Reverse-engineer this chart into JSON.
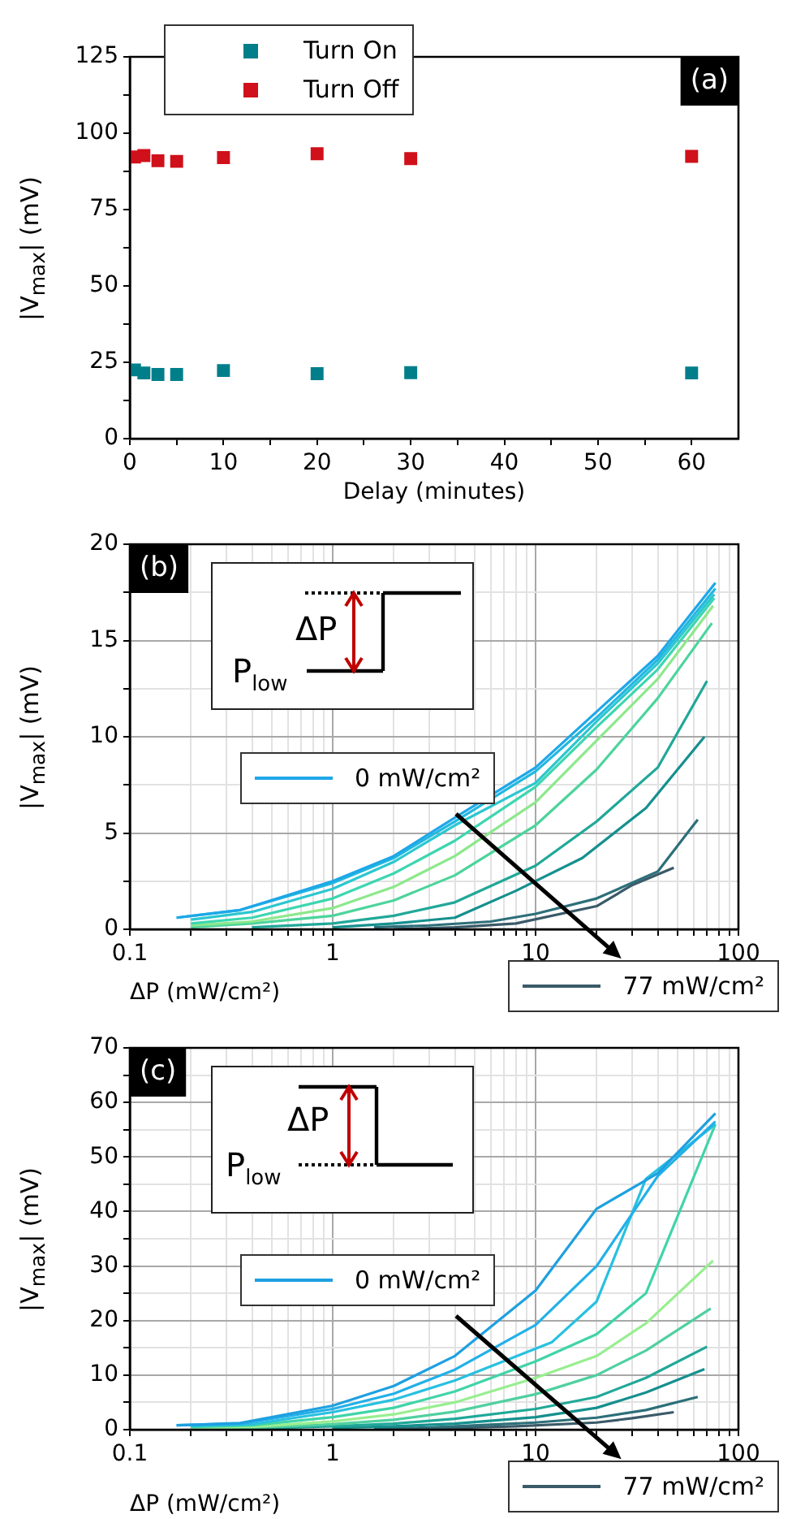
{
  "chart_data": [
    {
      "type": "scatter",
      "title": "(a)",
      "xlabel": "Delay (minutes)",
      "ylabel": "|V$_{max}$| (mV)",
      "xlim": [
        0,
        65
      ],
      "xticks": [
        0,
        {
          "value": 5,
          "label": null
        },
        10,
        {
          "value": 15,
          "label": null
        },
        20,
        {
          "value": 25,
          "label": null
        },
        30,
        {
          "value": 35,
          "label": null
        },
        40,
        {
          "value": 45,
          "label": null
        },
        50,
        {
          "value": 55,
          "label": null
        },
        60
      ],
      "ylim": [
        0,
        125
      ],
      "yticks": [
        0,
        {
          "value": 12.5,
          "label": null
        },
        25,
        {
          "value": 37.5,
          "label": null
        },
        50,
        {
          "value": 62.5,
          "label": null
        },
        75,
        {
          "value": 87.5,
          "label": null
        },
        100,
        {
          "value": 112.5,
          "label": null
        },
        125
      ],
      "grid": false,
      "legend": "top left",
      "marker": "square",
      "x": [
        0.5,
        1.5,
        3,
        5,
        10,
        20,
        30,
        60
      ],
      "series": [
        {
          "name": "Turn On",
          "color": "#007f8a",
          "values": [
            22.5,
            21.5,
            21,
            21,
            22.3,
            21.3,
            21.6,
            21.5
          ]
        },
        {
          "name": "Turn Off",
          "color": "#d0101a",
          "values": [
            92.2,
            92.7,
            91,
            90.8,
            92,
            93.3,
            91.7,
            92.4
          ]
        }
      ]
    },
    {
      "type": "line",
      "title": "(b)",
      "xlabel": "ΔP (mW/cm²)",
      "ylabel": "|V$_{max}$| (mV)",
      "log": "x",
      "xlim": [
        0.1,
        100
      ],
      "xticks": [
        0.1,
        {
          "value": 0.2,
          "label": null
        },
        {
          "value": 0.3,
          "label": null
        },
        {
          "value": 0.4,
          "label": null
        },
        {
          "value": 0.5,
          "label": null
        },
        {
          "value": 0.6,
          "label": null
        },
        {
          "value": 0.7,
          "label": null
        },
        {
          "value": 0.8,
          "label": null
        },
        {
          "value": 0.9,
          "label": null
        },
        1,
        {
          "value": 2,
          "label": null
        },
        {
          "value": 3,
          "label": null
        },
        {
          "value": 4,
          "label": null
        },
        {
          "value": 5,
          "label": null
        },
        {
          "value": 6,
          "label": null
        },
        {
          "value": 7,
          "label": null
        },
        {
          "value": 8,
          "label": null
        },
        {
          "value": 9,
          "label": null
        },
        10,
        {
          "value": 20,
          "label": null
        },
        {
          "value": 30,
          "label": null
        },
        {
          "value": 40,
          "label": null
        },
        {
          "value": 50,
          "label": null
        },
        {
          "value": 60,
          "label": null
        },
        {
          "value": 70,
          "label": null
        },
        {
          "value": 80,
          "label": null
        },
        {
          "value": 90,
          "label": null
        },
        100
      ],
      "ylim": [
        0,
        20
      ],
      "yticks": [
        0,
        {
          "value": 2.5,
          "label": null
        },
        5,
        {
          "value": 7.5,
          "label": null
        },
        10,
        {
          "value": 12.5,
          "label": null
        },
        15,
        {
          "value": 17.5,
          "label": null
        },
        20
      ],
      "grid": true,
      "legend": "bottom right",
      "marker": "none",
      "line_style": "solid",
      "annotations": [
        "ΔP",
        "P$_{low}$"
      ],
      "series": [
        {
          "name": "0 mW/cm²",
          "color": "#1ea7e8",
          "x": [
            0.17,
            0.35,
            1,
            2,
            4,
            10,
            20,
            40,
            77
          ],
          "values": [
            0.6,
            1.0,
            2.5,
            3.8,
            5.8,
            8.4,
            11.3,
            14.2,
            18.0
          ]
        },
        {
          "color": "#22b8e0",
          "x": [
            0.17,
            0.35,
            1,
            2,
            4,
            10,
            20,
            40,
            77
          ],
          "values": [
            0.6,
            1.0,
            2.4,
            3.7,
            5.6,
            8.2,
            11.0,
            14.0,
            17.7
          ]
        },
        {
          "color": "#2cc7d0",
          "x": [
            0.2,
            0.4,
            1,
            2,
            4,
            10,
            20,
            40,
            76
          ],
          "values": [
            0.5,
            0.9,
            2.1,
            3.5,
            5.4,
            7.6,
            10.8,
            13.8,
            17.4
          ]
        },
        {
          "color": "#3dd6b0",
          "x": [
            0.2,
            0.4,
            1,
            2,
            4,
            10,
            20,
            40,
            76
          ],
          "values": [
            0.3,
            0.6,
            1.6,
            2.9,
            4.6,
            7.4,
            10.5,
            13.5,
            17.2
          ]
        },
        {
          "color": "#8ce88c",
          "x": [
            0.2,
            0.4,
            1,
            2,
            4,
            10,
            20,
            40,
            75
          ],
          "values": [
            0.2,
            0.4,
            1.1,
            2.2,
            3.8,
            6.6,
            9.8,
            13.0,
            16.8
          ]
        },
        {
          "color": "#4cd49c",
          "x": [
            0.2,
            0.4,
            1,
            2,
            4,
            10,
            20,
            40,
            74
          ],
          "values": [
            0.1,
            0.3,
            0.7,
            1.5,
            2.8,
            5.4,
            8.3,
            12.0,
            15.9
          ]
        },
        {
          "color": "#20a898",
          "x": [
            0.4,
            1,
            2,
            4,
            10,
            20,
            40,
            70
          ],
          "values": [
            0.1,
            0.3,
            0.7,
            1.4,
            3.3,
            5.6,
            8.4,
            12.9
          ]
        },
        {
          "color": "#15908e",
          "x": [
            1,
            2,
            4,
            8,
            17,
            35,
            68
          ],
          "values": [
            0.1,
            0.3,
            0.6,
            2.0,
            3.7,
            6.3,
            10.0
          ]
        },
        {
          "color": "#2d6f7a",
          "x": [
            1.6,
            3,
            6,
            10,
            20,
            40,
            63
          ],
          "values": [
            0.1,
            0.2,
            0.4,
            0.8,
            1.6,
            3.0,
            5.7
          ]
        },
        {
          "name": "77 mW/cm²",
          "color": "#3a5a68",
          "x": [
            2,
            4,
            8,
            20,
            30,
            48
          ],
          "values": [
            0,
            0.1,
            0.3,
            1.2,
            2.3,
            3.2
          ]
        }
      ]
    },
    {
      "type": "line",
      "title": "(c)",
      "xlabel": "ΔP (mW/cm²)",
      "ylabel": "|V$_{max}$| (mV)",
      "log": "x",
      "xlim": [
        0.1,
        100
      ],
      "xticks": [
        0.1,
        {
          "value": 0.2,
          "label": null
        },
        {
          "value": 0.3,
          "label": null
        },
        {
          "value": 0.4,
          "label": null
        },
        {
          "value": 0.5,
          "label": null
        },
        {
          "value": 0.6,
          "label": null
        },
        {
          "value": 0.7,
          "label": null
        },
        {
          "value": 0.8,
          "label": null
        },
        {
          "value": 0.9,
          "label": null
        },
        1,
        {
          "value": 2,
          "label": null
        },
        {
          "value": 3,
          "label": null
        },
        {
          "value": 4,
          "label": null
        },
        {
          "value": 5,
          "label": null
        },
        {
          "value": 6,
          "label": null
        },
        {
          "value": 7,
          "label": null
        },
        {
          "value": 8,
          "label": null
        },
        {
          "value": 9,
          "label": null
        },
        10,
        {
          "value": 20,
          "label": null
        },
        {
          "value": 30,
          "label": null
        },
        {
          "value": 40,
          "label": null
        },
        {
          "value": 50,
          "label": null
        },
        {
          "value": 60,
          "label": null
        },
        {
          "value": 70,
          "label": null
        },
        {
          "value": 80,
          "label": null
        },
        {
          "value": 90,
          "label": null
        },
        100
      ],
      "ylim": [
        0,
        70
      ],
      "yticks": [
        0,
        {
          "value": 5,
          "label": null
        },
        10,
        {
          "value": 15,
          "label": null
        },
        20,
        {
          "value": 25,
          "label": null
        },
        30,
        {
          "value": 35,
          "label": null
        },
        40,
        {
          "value": 45,
          "label": null
        },
        50,
        {
          "value": 55,
          "label": null
        },
        60,
        {
          "value": 65,
          "label": null
        },
        70
      ],
      "grid": true,
      "legend": "bottom right",
      "marker": "none",
      "line_style": "solid",
      "annotations": [
        "ΔP",
        "P$_{low}$"
      ],
      "series": [
        {
          "name": "0 mW/cm²",
          "color": "#1ea0e0",
          "x": [
            0.17,
            0.35,
            1,
            2,
            4,
            10,
            20,
            40,
            77
          ],
          "values": [
            0.8,
            1.2,
            4.4,
            8,
            13.5,
            25.5,
            40.5,
            47,
            58
          ]
        },
        {
          "color": "#22b0e8",
          "x": [
            0.17,
            0.35,
            1,
            2,
            4,
            10,
            20,
            40,
            77
          ],
          "values": [
            0.8,
            1.1,
            3.8,
            6.6,
            11,
            19.2,
            30,
            46.5,
            56.5
          ]
        },
        {
          "color": "#28c0e0",
          "x": [
            0.2,
            0.4,
            1,
            2,
            4,
            12,
            20,
            35,
            77
          ],
          "values": [
            0.7,
            1,
            3.2,
            5.5,
            9,
            16,
            23.5,
            46,
            56
          ]
        },
        {
          "color": "#40d4a8",
          "x": [
            0.2,
            0.4,
            1,
            2,
            4,
            10,
            20,
            35,
            77
          ],
          "values": [
            0.5,
            0.8,
            2.3,
            4,
            7,
            12.5,
            17.5,
            25,
            56
          ]
        },
        {
          "color": "#98ee90",
          "x": [
            0.2,
            0.4,
            1,
            2,
            4,
            10,
            20,
            35,
            75
          ],
          "values": [
            0.3,
            0.5,
            1.5,
            2.8,
            5,
            9.5,
            13.5,
            19.5,
            31
          ]
        },
        {
          "color": "#50d0a0",
          "x": [
            0.2,
            0.4,
            1,
            2,
            4,
            10,
            20,
            35,
            73
          ],
          "values": [
            0.2,
            0.3,
            1,
            1.8,
            3.3,
            6.5,
            10,
            14.5,
            22.2
          ]
        },
        {
          "color": "#20a898",
          "x": [
            0.4,
            1,
            2,
            4,
            10,
            20,
            35,
            70
          ],
          "values": [
            0.2,
            0.6,
            1.1,
            2,
            3.8,
            6,
            9.5,
            15.2
          ]
        },
        {
          "color": "#15908e",
          "x": [
            1,
            2,
            4,
            10,
            20,
            35,
            68
          ],
          "values": [
            0.3,
            0.6,
            1.1,
            2.3,
            4,
            6.8,
            11.1
          ]
        },
        {
          "color": "#2d6f7a",
          "x": [
            1.6,
            3,
            6,
            10,
            20,
            35,
            63
          ],
          "values": [
            0.2,
            0.4,
            0.9,
            1.3,
            2.2,
            3.6,
            6
          ]
        },
        {
          "name": "77 mW/cm²",
          "color": "#3a5a68",
          "x": [
            2,
            4,
            8,
            20,
            30,
            48
          ],
          "values": [
            0.1,
            0.3,
            0.6,
            1.3,
            2.1,
            3.2
          ]
        }
      ]
    }
  ]
}
